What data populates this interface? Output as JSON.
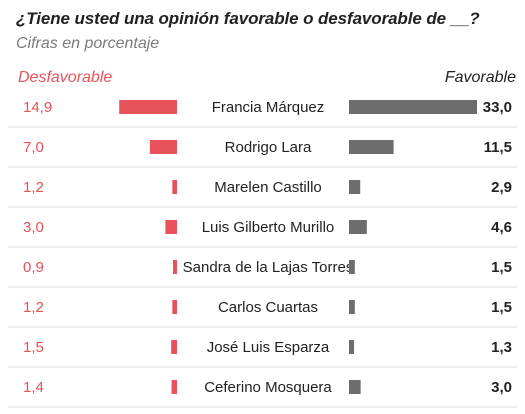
{
  "colors": {
    "unfavorable": "#e8525a",
    "favorable": "#6d6d6d",
    "divider": "#dddddd"
  },
  "chart_data": {
    "type": "bar",
    "title": "¿Tiene usted una opinión favorable o desfavorable de __?",
    "subtitle": "Cifras en porcentaje",
    "categories": [
      "Francia Márquez",
      "Rodrigo Lara",
      "Marelen Castillo",
      "Luis Gilberto Murillo",
      "Sandra de la Lajas Torres",
      "Carlos Cuartas",
      "José Luis Esparza",
      "Ceferino Mosquera"
    ],
    "series": [
      {
        "name": "Desfavorable",
        "values": [
          14.9,
          7.0,
          1.2,
          3.0,
          0.9,
          1.2,
          1.5,
          1.4
        ],
        "labels": [
          "14,9",
          "7,0",
          "1,2",
          "3,0",
          "0,9",
          "1,2",
          "1,5",
          "1,4"
        ]
      },
      {
        "name": "Favorable",
        "values": [
          33.0,
          11.5,
          2.9,
          4.6,
          1.5,
          1.5,
          1.3,
          3.0
        ],
        "labels": [
          "33,0",
          "11,5",
          "2,9",
          "4,6",
          "1,5",
          "1,5",
          "1,3",
          "3,0"
        ]
      }
    ],
    "grid": false,
    "legend": "top"
  }
}
